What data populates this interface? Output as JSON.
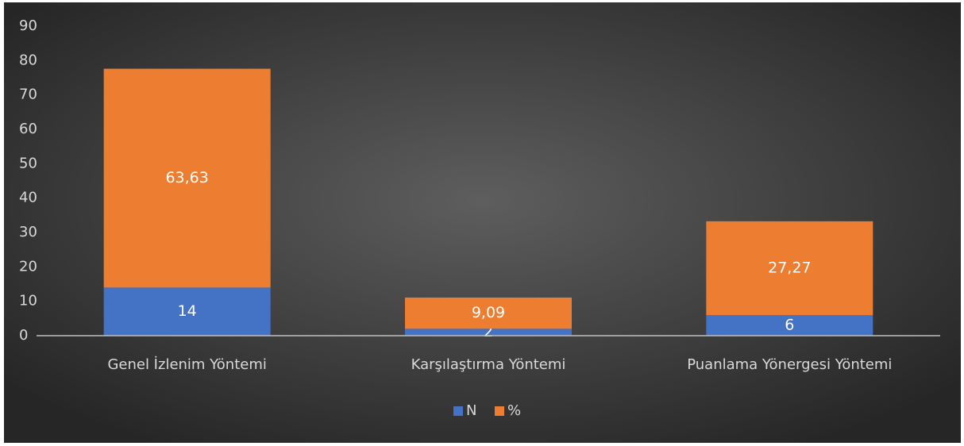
{
  "chart_data": {
    "type": "bar",
    "stacked": true,
    "categories": [
      "Genel İzlenim Yöntemi",
      "Karşılaştırma Yöntemi",
      "Puanlama Yönergesi Yöntemi"
    ],
    "series": [
      {
        "name": "N",
        "color": "#4472c4",
        "values": [
          14,
          2,
          6
        ]
      },
      {
        "name": "%",
        "color": "#ed7d31",
        "values": [
          63.63,
          9.09,
          27.27
        ],
        "value_labels": [
          "63,63",
          "9,09",
          "27,27"
        ]
      }
    ],
    "ylim": [
      0,
      90
    ],
    "yticks": [
      0,
      10,
      20,
      30,
      40,
      50,
      60,
      70,
      80,
      90
    ],
    "grid": false,
    "legend": "bottom"
  }
}
